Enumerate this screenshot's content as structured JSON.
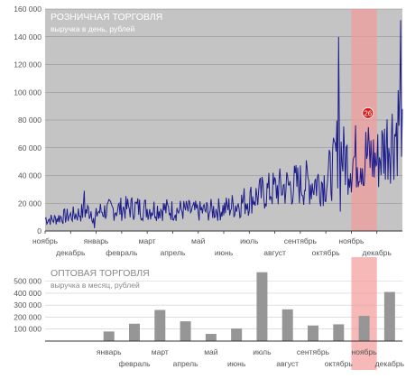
{
  "colors": {
    "top_plot_bg": "#c4c4c4",
    "line": "#1c1c8c",
    "highlight_band": "#f49a9a",
    "bottom_bar": "#969696",
    "marker": "#d81818",
    "title_text": "#ffffff",
    "bottom_title_text": "#888888",
    "grid": "#8c8c8c",
    "tick_text": "#555555"
  },
  "chart_data": [
    {
      "type": "line",
      "title": "РОЗНИЧНАЯ ТОРГОВЛЯ",
      "subtitle": "выручка в день, рублей",
      "ylim": [
        0,
        160000
      ],
      "yticks": [
        0,
        20000,
        40000,
        60000,
        80000,
        100000,
        120000,
        140000,
        160000
      ],
      "ytick_labels": [
        "0",
        "20 000",
        "40 000",
        "60 000",
        "80 000",
        "100 000",
        "120 000",
        "140 000",
        "160 000"
      ],
      "x_unit": "months from start (ноябрь = 0)",
      "xlim": [
        0,
        14
      ],
      "month_labels": [
        "ноябрь",
        "декабрь",
        "январь",
        "февраль",
        "март",
        "апрель",
        "май",
        "июнь",
        "июль",
        "август",
        "сентябрь",
        "октябрь",
        "ноябрь",
        "декабрь"
      ],
      "highlight": {
        "from": 12.0,
        "to": 13.0
      },
      "marker": {
        "x": 12.65,
        "y": 85000,
        "label": "26"
      },
      "series_anchors": {
        "x": [
          0,
          0.3,
          0.6,
          1.0,
          1.4,
          1.8,
          1.95,
          2.05,
          2.5,
          3.0,
          3.5,
          4.0,
          4.5,
          5.0,
          5.5,
          6.0,
          6.5,
          7.0,
          7.5,
          8.0,
          8.5,
          9.0,
          9.5,
          10.0,
          10.5,
          11.0,
          11.3,
          11.5,
          11.7,
          12.0,
          12.3,
          12.65,
          13.0,
          13.3,
          13.5,
          13.7,
          13.85,
          14.0
        ],
        "y": [
          9000,
          8000,
          10000,
          11000,
          13000,
          15000,
          8000,
          14000,
          15000,
          16000,
          17000,
          16000,
          16000,
          15000,
          15000,
          14000,
          15000,
          16000,
          19000,
          23000,
          27000,
          30000,
          32000,
          34000,
          35000,
          36000,
          45000,
          62000,
          52000,
          50000,
          55000,
          54000,
          50000,
          60000,
          68000,
          70000,
          80000,
          95000
        ]
      },
      "spikes": [
        {
          "x": 1.55,
          "y": 29000
        },
        {
          "x": 1.95,
          "y": 2000
        },
        {
          "x": 11.5,
          "y": 140000
        },
        {
          "x": 11.55,
          "y": 14000
        },
        {
          "x": 12.5,
          "y": 33000
        },
        {
          "x": 13.95,
          "y": 152000
        },
        {
          "x": 14.0,
          "y": 88000
        }
      ]
    },
    {
      "type": "bar",
      "title": "ОПТОВАЯ ТОРГОВЛЯ",
      "subtitle": "выручка в месяц, рублей",
      "ylim": [
        0,
        550000
      ],
      "yticks": [
        100000,
        200000,
        300000,
        400000,
        500000
      ],
      "ytick_labels": [
        "100 000",
        "200 000",
        "300 000",
        "400 000",
        "500 000"
      ],
      "categories": [
        "ноябрь",
        "декабрь",
        "январь",
        "февраль",
        "март",
        "апрель",
        "май",
        "июнь",
        "июль",
        "август",
        "сентябрь",
        "октябрь",
        "ноябрь",
        "декабрь"
      ],
      "values": [
        0,
        0,
        80000,
        145000,
        260000,
        165000,
        60000,
        105000,
        575000,
        265000,
        130000,
        140000,
        210000,
        410000
      ],
      "highlight_index": 12
    }
  ]
}
